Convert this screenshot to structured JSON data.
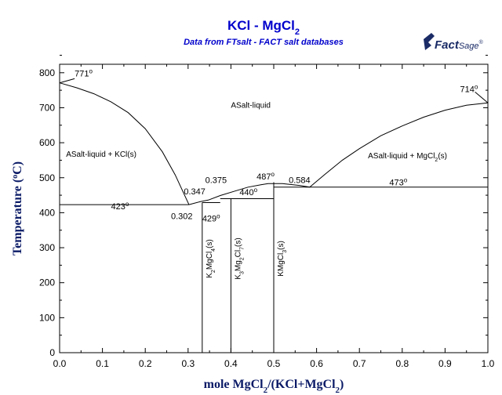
{
  "chart_data": {
    "type": "line",
    "title_main": "KCl - MgCl",
    "title_sub_index": "2",
    "subtitle": "Data from FTsalt - FACT salt databases",
    "logo": {
      "word1": "Fact",
      "word2": "Sage",
      "mark": "®"
    },
    "xlabel": {
      "a": "mole MgCl",
      "a_sub": "2",
      "b": "/(KCl+MgCl",
      "b_sub": "2",
      "c": ")"
    },
    "ylabel": {
      "pre": "Temperature (",
      "deg": "o",
      "post": "C)"
    },
    "xlim": [
      0,
      1
    ],
    "ylim": [
      0,
      850
    ],
    "x_ticks": [
      "0.0",
      "0.1",
      "0.2",
      "0.3",
      "0.4",
      "0.5",
      "0.6",
      "0.7",
      "0.8",
      "0.9",
      "1.0"
    ],
    "y_ticks": [
      "0",
      "100",
      "200",
      "300",
      "400",
      "500",
      "600",
      "700",
      "800"
    ],
    "grid": false,
    "series": [
      {
        "values": [
          [
            0,
            771
          ],
          [
            0.04,
            757
          ],
          [
            0.08,
            740
          ],
          [
            0.12,
            717
          ],
          [
            0.16,
            686
          ],
          [
            0.2,
            640
          ],
          [
            0.24,
            574
          ],
          [
            0.27,
            508
          ],
          [
            0.29,
            455
          ],
          [
            0.302,
            423
          ]
        ]
      },
      {
        "values": [
          [
            0.302,
            423
          ],
          [
            0.33,
            432
          ],
          [
            0.347,
            436
          ]
        ]
      },
      {
        "values": [
          [
            0.347,
            436
          ],
          [
            0.375,
            449
          ],
          [
            0.41,
            462
          ],
          [
            0.44,
            473
          ],
          [
            0.47,
            480
          ],
          [
            0.487,
            483
          ],
          [
            0.52,
            483
          ],
          [
            0.56,
            478
          ],
          [
            0.584,
            473
          ]
        ]
      },
      {
        "values": [
          [
            0.584,
            473
          ],
          [
            0.62,
            510
          ],
          [
            0.66,
            550
          ],
          [
            0.7,
            583
          ],
          [
            0.75,
            620
          ],
          [
            0.8,
            648
          ],
          [
            0.85,
            673
          ],
          [
            0.9,
            693
          ],
          [
            0.95,
            707
          ],
          [
            1.0,
            714
          ]
        ]
      }
    ],
    "horizontal_lines": [
      {
        "y": 423,
        "x": [
          0,
          0.302
        ]
      },
      {
        "y": 429,
        "x": [
          0.333,
          0.375
        ]
      },
      {
        "y": 440,
        "x": [
          0.375,
          0.5
        ]
      },
      {
        "y": 473,
        "x": [
          0.5,
          1.0
        ]
      }
    ],
    "compounds": [
      {
        "x": 0.333,
        "top": 429,
        "label_main": "K",
        "label_parts": [
          "2",
          "MgCl",
          "4",
          "(s)"
        ]
      },
      {
        "x": 0.4,
        "top": 440,
        "label_parts": [
          "K",
          "3",
          "Mg",
          "2",
          "Cl",
          "7",
          "(s)"
        ]
      },
      {
        "x": 0.5,
        "top": 487,
        "label_parts": [
          "KMgCl",
          "3",
          "(s)"
        ]
      }
    ],
    "annotations": [
      {
        "text": "771",
        "deg": true,
        "x": 0.035,
        "y": 790
      },
      {
        "text": "714",
        "deg": true,
        "x": 0.935,
        "y": 745
      },
      {
        "text": "423",
        "deg": true,
        "x": 0.12,
        "y": 410
      },
      {
        "text": "429",
        "deg": true,
        "x": 0.333,
        "y": 375
      },
      {
        "text": "440",
        "deg": true,
        "x": 0.42,
        "y": 450
      },
      {
        "text": "487",
        "deg": true,
        "x": 0.46,
        "y": 495
      },
      {
        "text": "473",
        "deg": true,
        "x": 0.77,
        "y": 478
      },
      {
        "text": "0.302",
        "deg": false,
        "x": 0.26,
        "y": 382
      },
      {
        "text": "0.347",
        "deg": false,
        "x": 0.29,
        "y": 452
      },
      {
        "text": "0.375",
        "deg": false,
        "x": 0.34,
        "y": 485
      },
      {
        "text": "0.584",
        "deg": false,
        "x": 0.535,
        "y": 485
      }
    ],
    "phase_labels": [
      {
        "text": "ASalt-liquid",
        "x": 0.4,
        "y": 700
      },
      {
        "text": "ASalt-liquid + KCl(s)",
        "x": 0.015,
        "y": 560
      },
      {
        "text": "ASalt-liquid + MgCl",
        "sub": "2",
        "post": "(s)",
        "x": 0.72,
        "y": 555
      }
    ]
  }
}
